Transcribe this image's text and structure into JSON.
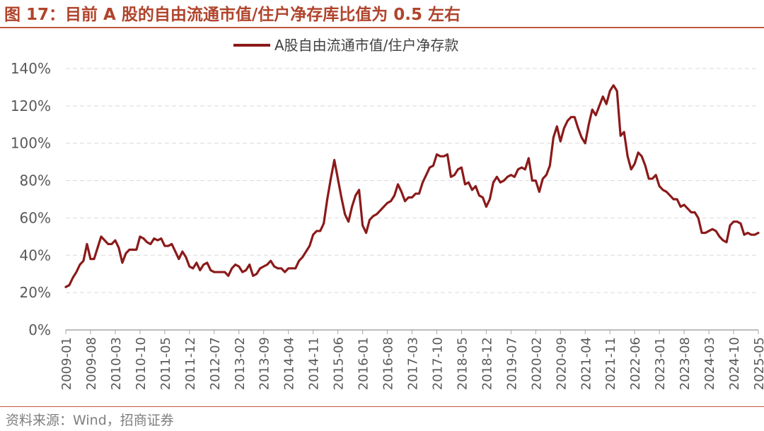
{
  "figure": {
    "title": "图 17：目前 A 股的自由流通市值/住户净存库比值为 0.5 左右",
    "source": "资料来源：Wind，招商证券"
  },
  "colors": {
    "accent": "#b0442c",
    "series": "#8b1a1a",
    "grid": "#d9d9d9",
    "axis_text": "#595959"
  },
  "chart_data": {
    "type": "line",
    "title": "",
    "xlabel": "",
    "ylabel": "",
    "ylim": [
      0,
      140
    ],
    "y_unit": "%",
    "y_ticks": [
      "0%",
      "20%",
      "40%",
      "60%",
      "80%",
      "100%",
      "120%",
      "140%"
    ],
    "x_tick_labels": [
      "2009-01",
      "2009-08",
      "2010-03",
      "2010-10",
      "2011-05",
      "2011-12",
      "2012-07",
      "2013-02",
      "2013-09",
      "2014-04",
      "2014-11",
      "2015-06",
      "2016-01",
      "2016-08",
      "2017-03",
      "2017-10",
      "2018-05",
      "2018-12",
      "2019-07",
      "2020-02",
      "2020-09",
      "2021-04",
      "2021-11",
      "2022-06",
      "2023-01",
      "2023-08",
      "2024-03",
      "2024-10",
      "2025-05"
    ],
    "grid": "horizontal dashed",
    "legend": {
      "position": "top-center",
      "entries": [
        "A股自由流通市值/住户净存款"
      ]
    },
    "series": [
      {
        "name": "A股自由流通市值/住户净存款",
        "values": [
          [
            "2009-01",
            23
          ],
          [
            "2009-02",
            24
          ],
          [
            "2009-03",
            28
          ],
          [
            "2009-04",
            31
          ],
          [
            "2009-05",
            35
          ],
          [
            "2009-06",
            37
          ],
          [
            "2009-07",
            46
          ],
          [
            "2009-08",
            38
          ],
          [
            "2009-09",
            38
          ],
          [
            "2009-10",
            44
          ],
          [
            "2009-11",
            50
          ],
          [
            "2009-12",
            48
          ],
          [
            "2010-01",
            46
          ],
          [
            "2010-02",
            46
          ],
          [
            "2010-03",
            48
          ],
          [
            "2010-04",
            44
          ],
          [
            "2010-05",
            36
          ],
          [
            "2010-06",
            41
          ],
          [
            "2010-07",
            43
          ],
          [
            "2010-08",
            43
          ],
          [
            "2010-09",
            43
          ],
          [
            "2010-10",
            50
          ],
          [
            "2010-11",
            49
          ],
          [
            "2010-12",
            47
          ],
          [
            "2011-01",
            46
          ],
          [
            "2011-02",
            49
          ],
          [
            "2011-03",
            48
          ],
          [
            "2011-04",
            49
          ],
          [
            "2011-05",
            45
          ],
          [
            "2011-06",
            45
          ],
          [
            "2011-07",
            46
          ],
          [
            "2011-08",
            42
          ],
          [
            "2011-09",
            38
          ],
          [
            "2011-10",
            42
          ],
          [
            "2011-11",
            39
          ],
          [
            "2011-12",
            34
          ],
          [
            "2012-01",
            33
          ],
          [
            "2012-02",
            36
          ],
          [
            "2012-03",
            32
          ],
          [
            "2012-04",
            35
          ],
          [
            "2012-05",
            36
          ],
          [
            "2012-06",
            32
          ],
          [
            "2012-07",
            31
          ],
          [
            "2012-08",
            31
          ],
          [
            "2012-09",
            31
          ],
          [
            "2012-10",
            31
          ],
          [
            "2012-11",
            29
          ],
          [
            "2012-12",
            33
          ],
          [
            "2013-01",
            35
          ],
          [
            "2013-02",
            34
          ],
          [
            "2013-03",
            31
          ],
          [
            "2013-04",
            32
          ],
          [
            "2013-05",
            35
          ],
          [
            "2013-06",
            29
          ],
          [
            "2013-07",
            30
          ],
          [
            "2013-08",
            33
          ],
          [
            "2013-09",
            34
          ],
          [
            "2013-10",
            35
          ],
          [
            "2013-11",
            37
          ],
          [
            "2013-12",
            34
          ],
          [
            "2014-01",
            33
          ],
          [
            "2014-02",
            33
          ],
          [
            "2014-03",
            31
          ],
          [
            "2014-04",
            33
          ],
          [
            "2014-05",
            33
          ],
          [
            "2014-06",
            33
          ],
          [
            "2014-07",
            37
          ],
          [
            "2014-08",
            39
          ],
          [
            "2014-09",
            42
          ],
          [
            "2014-10",
            45
          ],
          [
            "2014-11",
            51
          ],
          [
            "2014-12",
            53
          ],
          [
            "2015-01",
            53
          ],
          [
            "2015-02",
            57
          ],
          [
            "2015-03",
            70
          ],
          [
            "2015-04",
            81
          ],
          [
            "2015-05",
            91
          ],
          [
            "2015-06",
            81
          ],
          [
            "2015-07",
            71
          ],
          [
            "2015-08",
            62
          ],
          [
            "2015-09",
            58
          ],
          [
            "2015-10",
            66
          ],
          [
            "2015-11",
            72
          ],
          [
            "2015-12",
            75
          ],
          [
            "2016-01",
            56
          ],
          [
            "2016-02",
            52
          ],
          [
            "2016-03",
            59
          ],
          [
            "2016-04",
            61
          ],
          [
            "2016-05",
            62
          ],
          [
            "2016-06",
            64
          ],
          [
            "2016-07",
            66
          ],
          [
            "2016-08",
            68
          ],
          [
            "2016-09",
            69
          ],
          [
            "2016-10",
            72
          ],
          [
            "2016-11",
            78
          ],
          [
            "2016-12",
            74
          ],
          [
            "2017-01",
            69
          ],
          [
            "2017-02",
            71
          ],
          [
            "2017-03",
            71
          ],
          [
            "2017-04",
            73
          ],
          [
            "2017-05",
            73
          ],
          [
            "2017-06",
            79
          ],
          [
            "2017-07",
            83
          ],
          [
            "2017-08",
            87
          ],
          [
            "2017-09",
            88
          ],
          [
            "2017-10",
            94
          ],
          [
            "2017-11",
            93
          ],
          [
            "2017-12",
            93
          ],
          [
            "2018-01",
            94
          ],
          [
            "2018-02",
            82
          ],
          [
            "2018-03",
            83
          ],
          [
            "2018-04",
            86
          ],
          [
            "2018-05",
            87
          ],
          [
            "2018-06",
            78
          ],
          [
            "2018-07",
            79
          ],
          [
            "2018-08",
            75
          ],
          [
            "2018-09",
            77
          ],
          [
            "2018-10",
            72
          ],
          [
            "2018-11",
            71
          ],
          [
            "2018-12",
            66
          ],
          [
            "2019-01",
            70
          ],
          [
            "2019-02",
            79
          ],
          [
            "2019-03",
            82
          ],
          [
            "2019-04",
            79
          ],
          [
            "2019-05",
            80
          ],
          [
            "2019-06",
            82
          ],
          [
            "2019-07",
            83
          ],
          [
            "2019-08",
            82
          ],
          [
            "2019-09",
            86
          ],
          [
            "2019-10",
            87
          ],
          [
            "2019-11",
            86
          ],
          [
            "2019-12",
            92
          ],
          [
            "2020-01",
            80
          ],
          [
            "2020-02",
            80
          ],
          [
            "2020-03",
            74
          ],
          [
            "2020-04",
            81
          ],
          [
            "2020-05",
            83
          ],
          [
            "2020-06",
            88
          ],
          [
            "2020-07",
            103
          ],
          [
            "2020-08",
            109
          ],
          [
            "2020-09",
            101
          ],
          [
            "2020-10",
            108
          ],
          [
            "2020-11",
            112
          ],
          [
            "2020-12",
            114
          ],
          [
            "2021-01",
            114
          ],
          [
            "2021-02",
            108
          ],
          [
            "2021-03",
            103
          ],
          [
            "2021-04",
            100
          ],
          [
            "2021-05",
            110
          ],
          [
            "2021-06",
            118
          ],
          [
            "2021-07",
            115
          ],
          [
            "2021-08",
            120
          ],
          [
            "2021-09",
            125
          ],
          [
            "2021-10",
            121
          ],
          [
            "2021-11",
            128
          ],
          [
            "2021-12",
            131
          ],
          [
            "2022-01",
            128
          ],
          [
            "2022-02",
            104
          ],
          [
            "2022-03",
            106
          ],
          [
            "2022-04",
            93
          ],
          [
            "2022-05",
            86
          ],
          [
            "2022-06",
            89
          ],
          [
            "2022-07",
            95
          ],
          [
            "2022-08",
            93
          ],
          [
            "2022-09",
            88
          ],
          [
            "2022-10",
            81
          ],
          [
            "2022-11",
            81
          ],
          [
            "2022-12",
            83
          ],
          [
            "2023-01",
            77
          ],
          [
            "2023-02",
            75
          ],
          [
            "2023-03",
            74
          ],
          [
            "2023-04",
            72
          ],
          [
            "2023-05",
            70
          ],
          [
            "2023-06",
            70
          ],
          [
            "2023-07",
            66
          ],
          [
            "2023-08",
            67
          ],
          [
            "2023-09",
            65
          ],
          [
            "2023-10",
            63
          ],
          [
            "2023-11",
            63
          ],
          [
            "2023-12",
            60
          ],
          [
            "2024-01",
            52
          ],
          [
            "2024-02",
            52
          ],
          [
            "2024-03",
            53
          ],
          [
            "2024-04",
            54
          ],
          [
            "2024-05",
            53
          ],
          [
            "2024-06",
            50
          ],
          [
            "2024-07",
            48
          ],
          [
            "2024-08",
            47
          ],
          [
            "2024-09",
            56
          ],
          [
            "2024-10",
            58
          ],
          [
            "2024-11",
            58
          ],
          [
            "2024-12",
            57
          ],
          [
            "2025-01",
            51
          ],
          [
            "2025-02",
            52
          ],
          [
            "2025-03",
            51
          ],
          [
            "2025-04",
            51
          ],
          [
            "2025-05",
            52
          ]
        ]
      }
    ]
  }
}
